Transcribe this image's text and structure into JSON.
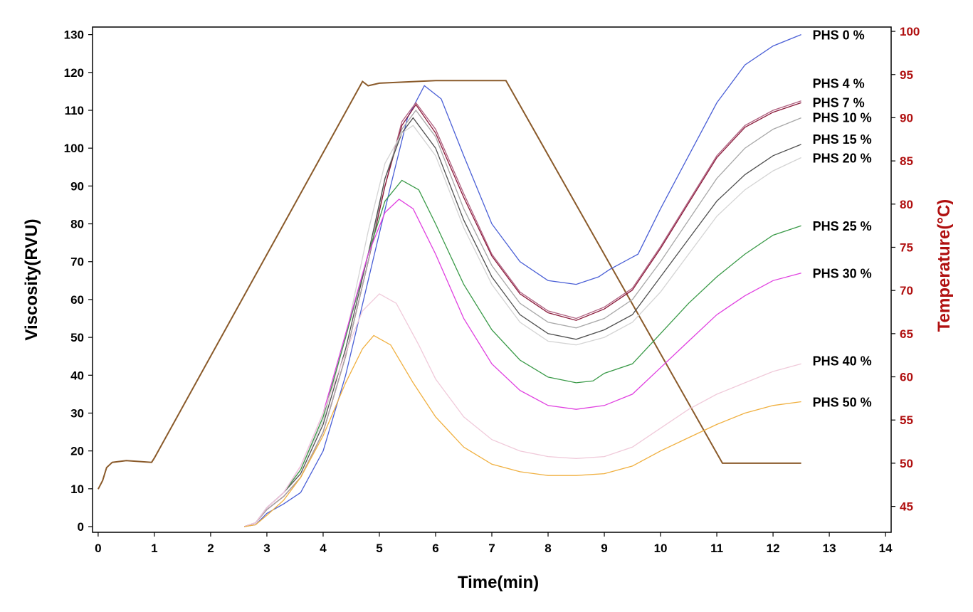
{
  "chart_data": {
    "type": "line",
    "xlabel": "Time(min)",
    "ylabel": "Viscosity(RVU)",
    "y2label": "Temperature(°C)",
    "xlim": [
      -0.1,
      14.1
    ],
    "ylim": [
      -1.5,
      132
    ],
    "y2lim": [
      42,
      100.5
    ],
    "xticks": [
      0,
      1,
      2,
      3,
      4,
      5,
      6,
      7,
      8,
      9,
      10,
      11,
      12,
      13,
      14
    ],
    "yticks": [
      0,
      10,
      20,
      30,
      40,
      50,
      60,
      70,
      80,
      90,
      100,
      110,
      120,
      130
    ],
    "y2ticks": [
      45,
      50,
      55,
      60,
      65,
      70,
      75,
      80,
      85,
      90,
      95,
      100
    ],
    "temperature_color": "#b01010",
    "temperature": {
      "name": "Temperature",
      "color": "#8a5a2a",
      "axis": "right",
      "points": [
        [
          0,
          47
        ],
        [
          0.08,
          48
        ],
        [
          0.15,
          49.5
        ],
        [
          0.25,
          50.1
        ],
        [
          0.5,
          50.3
        ],
        [
          0.95,
          50.1
        ],
        [
          1.0,
          50.6
        ],
        [
          4.7,
          94.2
        ],
        [
          4.8,
          93.7
        ],
        [
          5.0,
          94
        ],
        [
          6.0,
          94.3
        ],
        [
          7.25,
          94.3
        ],
        [
          11.1,
          50
        ],
        [
          12.5,
          50
        ]
      ]
    },
    "series": [
      {
        "name": "PHS 0 %",
        "color": "#4a5fd6",
        "points": [
          [
            2.6,
            0
          ],
          [
            2.8,
            0.5
          ],
          [
            3.0,
            3.5
          ],
          [
            3.3,
            6
          ],
          [
            3.6,
            9
          ],
          [
            4.0,
            20
          ],
          [
            4.4,
            40
          ],
          [
            4.8,
            65
          ],
          [
            5.2,
            90
          ],
          [
            5.5,
            108
          ],
          [
            5.8,
            116.5
          ],
          [
            6.1,
            113
          ],
          [
            6.5,
            98
          ],
          [
            7.0,
            80
          ],
          [
            7.5,
            70
          ],
          [
            8.0,
            65
          ],
          [
            8.5,
            64
          ],
          [
            8.9,
            66
          ],
          [
            9.1,
            68
          ],
          [
            9.6,
            72
          ],
          [
            10.0,
            84
          ],
          [
            10.5,
            98
          ],
          [
            11.0,
            112
          ],
          [
            11.5,
            122
          ],
          [
            12.0,
            127
          ],
          [
            12.5,
            130
          ]
        ]
      },
      {
        "name": "PHS 4 %",
        "color": "#b06080",
        "points": [
          [
            2.6,
            0
          ],
          [
            2.8,
            1
          ],
          [
            3.0,
            4.5
          ],
          [
            3.3,
            8
          ],
          [
            3.6,
            13
          ],
          [
            4.0,
            25
          ],
          [
            4.4,
            45
          ],
          [
            4.8,
            70
          ],
          [
            5.1,
            90
          ],
          [
            5.4,
            107
          ],
          [
            5.65,
            112
          ],
          [
            6.0,
            105
          ],
          [
            6.5,
            88
          ],
          [
            7.0,
            72
          ],
          [
            7.5,
            62
          ],
          [
            8.0,
            57
          ],
          [
            8.5,
            55
          ],
          [
            9.0,
            58
          ],
          [
            9.5,
            63
          ],
          [
            10.0,
            74
          ],
          [
            10.5,
            86
          ],
          [
            11.0,
            98
          ],
          [
            11.5,
            106
          ],
          [
            12.0,
            110
          ],
          [
            12.5,
            112.5
          ]
        ]
      },
      {
        "name": "PHS 7 %",
        "color": "#8a1a3a",
        "points": [
          [
            2.6,
            0
          ],
          [
            2.8,
            1
          ],
          [
            3.0,
            4.5
          ],
          [
            3.3,
            8
          ],
          [
            3.6,
            13
          ],
          [
            4.0,
            25
          ],
          [
            4.4,
            45
          ],
          [
            4.8,
            70
          ],
          [
            5.1,
            90
          ],
          [
            5.4,
            106
          ],
          [
            5.65,
            111.5
          ],
          [
            6.0,
            104
          ],
          [
            6.5,
            87
          ],
          [
            7.0,
            71.5
          ],
          [
            7.5,
            61.5
          ],
          [
            8.0,
            56.5
          ],
          [
            8.5,
            54.5
          ],
          [
            9.0,
            57.5
          ],
          [
            9.5,
            62.5
          ],
          [
            10.0,
            73.5
          ],
          [
            10.5,
            85.5
          ],
          [
            11.0,
            97.5
          ],
          [
            11.5,
            105.5
          ],
          [
            12.0,
            109.5
          ],
          [
            12.5,
            112
          ]
        ]
      },
      {
        "name": "PHS 10 %",
        "color": "#a8a8a8",
        "points": [
          [
            2.6,
            0
          ],
          [
            2.8,
            1
          ],
          [
            3.0,
            4.5
          ],
          [
            3.3,
            8
          ],
          [
            3.6,
            13
          ],
          [
            4.0,
            25
          ],
          [
            4.4,
            45
          ],
          [
            4.8,
            70
          ],
          [
            5.1,
            92
          ],
          [
            5.4,
            105
          ],
          [
            5.65,
            110
          ],
          [
            6.0,
            103
          ],
          [
            6.5,
            84
          ],
          [
            7.0,
            69
          ],
          [
            7.5,
            59
          ],
          [
            8.0,
            54
          ],
          [
            8.5,
            52.5
          ],
          [
            9.0,
            55
          ],
          [
            9.5,
            60
          ],
          [
            10.0,
            70
          ],
          [
            10.5,
            81
          ],
          [
            11.0,
            92
          ],
          [
            11.5,
            100
          ],
          [
            12.0,
            105
          ],
          [
            12.5,
            108
          ]
        ]
      },
      {
        "name": "PHS 15 %",
        "color": "#505050",
        "points": [
          [
            2.6,
            0
          ],
          [
            2.8,
            1
          ],
          [
            3.0,
            5
          ],
          [
            3.3,
            9
          ],
          [
            3.6,
            14
          ],
          [
            4.0,
            27
          ],
          [
            4.4,
            47
          ],
          [
            4.8,
            72
          ],
          [
            5.1,
            92
          ],
          [
            5.4,
            104
          ],
          [
            5.6,
            108
          ],
          [
            6.0,
            100
          ],
          [
            6.5,
            81
          ],
          [
            7.0,
            66
          ],
          [
            7.5,
            56
          ],
          [
            8.0,
            51
          ],
          [
            8.5,
            49.5
          ],
          [
            9.0,
            52
          ],
          [
            9.5,
            56
          ],
          [
            10.0,
            66
          ],
          [
            10.5,
            76
          ],
          [
            11.0,
            86
          ],
          [
            11.5,
            93
          ],
          [
            12.0,
            98
          ],
          [
            12.5,
            101
          ]
        ]
      },
      {
        "name": "PHS 20 %",
        "color": "#d4d4d4",
        "points": [
          [
            2.6,
            0
          ],
          [
            2.8,
            1
          ],
          [
            3.0,
            5
          ],
          [
            3.3,
            9
          ],
          [
            3.6,
            15
          ],
          [
            4.0,
            28
          ],
          [
            4.4,
            50
          ],
          [
            4.8,
            78
          ],
          [
            5.1,
            96
          ],
          [
            5.4,
            104
          ],
          [
            5.6,
            106
          ],
          [
            6.0,
            98
          ],
          [
            6.5,
            79
          ],
          [
            7.0,
            64
          ],
          [
            7.5,
            54
          ],
          [
            8.0,
            49
          ],
          [
            8.5,
            48
          ],
          [
            9.0,
            50
          ],
          [
            9.5,
            54
          ],
          [
            10.0,
            62
          ],
          [
            10.5,
            72
          ],
          [
            11.0,
            82
          ],
          [
            11.5,
            89
          ],
          [
            12.0,
            94
          ],
          [
            12.5,
            97.5
          ]
        ]
      },
      {
        "name": "PHS 25 %",
        "color": "#3a9a48",
        "points": [
          [
            2.6,
            0
          ],
          [
            2.8,
            1
          ],
          [
            3.0,
            5
          ],
          [
            3.3,
            9
          ],
          [
            3.6,
            15
          ],
          [
            4.0,
            29
          ],
          [
            4.4,
            50
          ],
          [
            4.8,
            72
          ],
          [
            5.1,
            86
          ],
          [
            5.4,
            91.5
          ],
          [
            5.7,
            89
          ],
          [
            6.0,
            80
          ],
          [
            6.5,
            64
          ],
          [
            7.0,
            52
          ],
          [
            7.5,
            44
          ],
          [
            8.0,
            39.5
          ],
          [
            8.5,
            38
          ],
          [
            8.8,
            38.5
          ],
          [
            9.0,
            40.5
          ],
          [
            9.5,
            43
          ],
          [
            10.0,
            51
          ],
          [
            10.5,
            59
          ],
          [
            11.0,
            66
          ],
          [
            11.5,
            72
          ],
          [
            12.0,
            77
          ],
          [
            12.5,
            79.5
          ]
        ]
      },
      {
        "name": "PHS 30 %",
        "color": "#e040e0",
        "points": [
          [
            2.6,
            0
          ],
          [
            2.8,
            1
          ],
          [
            3.0,
            5
          ],
          [
            3.3,
            9
          ],
          [
            3.6,
            16
          ],
          [
            4.0,
            30
          ],
          [
            4.4,
            51
          ],
          [
            4.8,
            72
          ],
          [
            5.1,
            83
          ],
          [
            5.35,
            86.5
          ],
          [
            5.6,
            84
          ],
          [
            6.0,
            72
          ],
          [
            6.5,
            55
          ],
          [
            7.0,
            43
          ],
          [
            7.5,
            36
          ],
          [
            8.0,
            32
          ],
          [
            8.5,
            31
          ],
          [
            9.0,
            32
          ],
          [
            9.5,
            35
          ],
          [
            10.0,
            42
          ],
          [
            10.5,
            49
          ],
          [
            11.0,
            56
          ],
          [
            11.5,
            61
          ],
          [
            12.0,
            65
          ],
          [
            12.5,
            67
          ]
        ]
      },
      {
        "name": "PHS 40 %",
        "color": "#f0cada",
        "points": [
          [
            2.6,
            0
          ],
          [
            2.8,
            1
          ],
          [
            3.0,
            5
          ],
          [
            3.3,
            9
          ],
          [
            3.6,
            16
          ],
          [
            4.0,
            30
          ],
          [
            4.4,
            46
          ],
          [
            4.7,
            57
          ],
          [
            5.0,
            61.5
          ],
          [
            5.3,
            59
          ],
          [
            5.7,
            48
          ],
          [
            6.0,
            39
          ],
          [
            6.5,
            29
          ],
          [
            7.0,
            23
          ],
          [
            7.5,
            20
          ],
          [
            8.0,
            18.5
          ],
          [
            8.5,
            18
          ],
          [
            9.0,
            18.5
          ],
          [
            9.5,
            21
          ],
          [
            10.0,
            26
          ],
          [
            10.5,
            31
          ],
          [
            11.0,
            35
          ],
          [
            11.5,
            38
          ],
          [
            12.0,
            41
          ],
          [
            12.5,
            43
          ]
        ]
      },
      {
        "name": "PHS 50 %",
        "color": "#f0b040",
        "points": [
          [
            2.6,
            0
          ],
          [
            2.8,
            0.5
          ],
          [
            3.0,
            3
          ],
          [
            3.3,
            7
          ],
          [
            3.6,
            13
          ],
          [
            4.0,
            24
          ],
          [
            4.4,
            38
          ],
          [
            4.7,
            47
          ],
          [
            4.9,
            50.5
          ],
          [
            5.2,
            48
          ],
          [
            5.6,
            38
          ],
          [
            6.0,
            29
          ],
          [
            6.5,
            21
          ],
          [
            7.0,
            16.5
          ],
          [
            7.5,
            14.5
          ],
          [
            8.0,
            13.5
          ],
          [
            8.5,
            13.5
          ],
          [
            9.0,
            14
          ],
          [
            9.5,
            16
          ],
          [
            10.0,
            20
          ],
          [
            10.5,
            23.5
          ],
          [
            11.0,
            27
          ],
          [
            11.5,
            30
          ],
          [
            12.0,
            32
          ],
          [
            12.5,
            33
          ]
        ]
      }
    ]
  }
}
